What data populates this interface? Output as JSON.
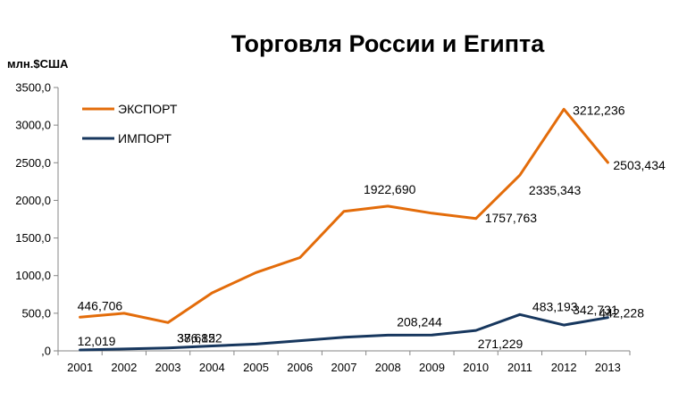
{
  "chart_data": {
    "type": "line",
    "title": "Торговля России и Египта",
    "ylabel": "млн.$США",
    "xlabel": "",
    "categories": [
      "2001",
      "2002",
      "2003",
      "2004",
      "2005",
      "2006",
      "2007",
      "2008",
      "2009",
      "2010",
      "2011",
      "2012",
      "2013"
    ],
    "ylim": [
      0,
      3500
    ],
    "ytick_values": [
      0,
      500,
      1000,
      1500,
      2000,
      2500,
      3000,
      3500
    ],
    "ytick_labels": [
      ",0",
      "500,0",
      "1000,0",
      "1500,0",
      "2000,0",
      "2500,0",
      "3000,0",
      "3500,0"
    ],
    "grid": false,
    "legend_position": "top-left",
    "series": [
      {
        "name": "ЭКСПОРТ",
        "color": "#E36C0A",
        "values": [
          446.706,
          500,
          376.152,
          770,
          1040,
          1240,
          1855,
          1922.69,
          1830,
          1757.763,
          2335.343,
          3212.236,
          2503.434
        ]
      },
      {
        "name": "ИМПОРТ",
        "color": "#17375E",
        "values": [
          12.019,
          25,
          38.682,
          65,
          90,
          135,
          180,
          208.244,
          210,
          271.229,
          483.193,
          342.731,
          442.228
        ]
      }
    ],
    "data_labels": [
      {
        "series": 0,
        "index": 0,
        "text": "446,706"
      },
      {
        "series": 0,
        "index": 2,
        "text": "376,152"
      },
      {
        "series": 0,
        "index": 7,
        "text": "1922,690"
      },
      {
        "series": 0,
        "index": 9,
        "text": "1757,763"
      },
      {
        "series": 0,
        "index": 10,
        "text": "2335,343"
      },
      {
        "series": 0,
        "index": 11,
        "text": "3212,236"
      },
      {
        "series": 0,
        "index": 12,
        "text": "2503,434"
      },
      {
        "series": 1,
        "index": 0,
        "text": "12,019"
      },
      {
        "series": 1,
        "index": 2,
        "text": "38,682"
      },
      {
        "series": 1,
        "index": 7,
        "text": "208,244"
      },
      {
        "series": 1,
        "index": 9,
        "text": "271,229"
      },
      {
        "series": 1,
        "index": 10,
        "text": "483,193"
      },
      {
        "series": 1,
        "index": 11,
        "text": "342,731"
      },
      {
        "series": 1,
        "index": 12,
        "text": "442,228"
      }
    ]
  }
}
